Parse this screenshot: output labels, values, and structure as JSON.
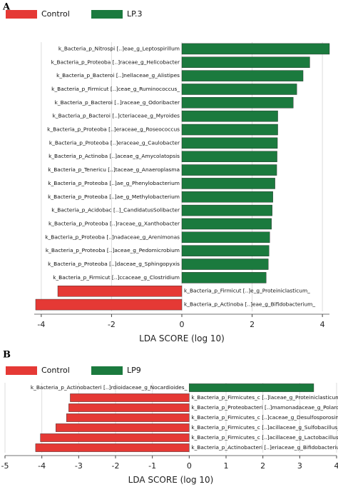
{
  "chart_data": [
    {
      "type": "bar",
      "orientation": "horizontal",
      "panel": "A",
      "x_label": "LDA SCORE (log 10)",
      "categories": [
        "k_Bacteria_p_Nitrospi [..]eae_g_Leptospirillum",
        "k_Bacteria_p_Proteoba [..]raceae_g_Helicobacter",
        "k_Bacteria_p_Bacteroi [..]nellaceae_g_Alistipes",
        "k_Bacteria_p_Firmicut [..]ceae_g_Ruminococcus_",
        "k_Bacteria_p_Bacteroi [..]raceae_g_Odoribacter",
        "k_Bacteria_p_Bacteroi [..]cteriaceae_g_Myroides",
        "k_Bacteria_p_Proteoba [..]eraceae_g_Roseococcus",
        "k_Bacteria_p_Proteoba [..]eraceae_g_Caulobacter",
        "k_Bacteria_p_Actinoba [..]aceae_g_Amycolatopsis",
        "k_Bacteria_p_Tenericu [..]taceae_g_Anaeroplasma",
        "k_Bacteria_p_Proteoba [..]ae_g_Phenylobacterium",
        "k_Bacteria_p_Proteoba [..]ae_g_Methylobacterium",
        "k_Bacteria_p_Acidobac [..]_CandidatusSolibacter",
        "k_Bacteria_p_Proteoba [..]raceae_g_Xanthobacter",
        "k_Bacteria_p_Proteoba [..]nadaceae_g_Arenimonas",
        "k_Bacteria_p_Proteoba [..]aceae_g_Pedomicrobium",
        "k_Bacteria_p_Proteoba [..]daceae_g_Sphingopyxis",
        "k_Bacteria_p_Firmicut [..]ccaceae_g_Clostridium",
        "k_Bacteria_p_Firmicut [..]e_g_Proteiniclasticum_",
        "k_Bacteria_p_Actinoba [..]eae_g_Bifidobacterium_"
      ],
      "series": [
        {
          "name": "Control",
          "color": "#e53935",
          "values": [
            null,
            null,
            null,
            null,
            null,
            null,
            null,
            null,
            null,
            null,
            null,
            null,
            null,
            null,
            null,
            null,
            null,
            null,
            -3.53,
            -4.16
          ]
        },
        {
          "name": "LP.3",
          "color": "#1b7a3e",
          "values": [
            4.2,
            3.64,
            3.45,
            3.27,
            3.17,
            2.73,
            2.73,
            2.72,
            2.71,
            2.7,
            2.65,
            2.59,
            2.57,
            2.55,
            2.5,
            2.48,
            2.46,
            2.4,
            null,
            null
          ]
        }
      ],
      "xlim": [
        -4.2,
        4.2
      ],
      "xticks": [
        -4,
        -2,
        0,
        2,
        4
      ],
      "grid": true
    },
    {
      "type": "bar",
      "orientation": "horizontal",
      "panel": "B",
      "x_label": "LDA SCORE (log 10)",
      "categories": [
        "k_Bacteria_p_Actinobacteri [..]rdioidaceae_g_Nocardioides_",
        "k_Bacteria_p_Firmicutes_c [..]laceae_g_Proteiniclasticum_",
        "k_Bacteria_p_Proteobacteri [..]mamonadaceae_g_Polaromonas_",
        "k_Bacteria_p_Firmicutes_c [..]caceae_g_Desulfosporosinus_",
        "k_Bacteria_p_Firmicutes_c [..]acillaceae_g_Sulfobacillus_",
        "k_Bacteria_p_Firmicutes_c [..]acillaceae_g_Lactobacillus_",
        "k_Bacteria_p_Actinobacteri [..]eriaceae_g_Bifidobacterium_"
      ],
      "series": [
        {
          "name": "Control",
          "color": "#e53935",
          "values": [
            null,
            -3.23,
            -3.27,
            -3.33,
            -3.62,
            -4.04,
            -4.17
          ]
        },
        {
          "name": "LP9",
          "color": "#1b7a3e",
          "values": [
            3.38,
            null,
            null,
            null,
            null,
            null,
            null
          ]
        }
      ],
      "xlim": [
        -5,
        4
      ],
      "xticks": [
        -5,
        -4,
        -3,
        -2,
        -1,
        0,
        1,
        2,
        3,
        4
      ],
      "grid": true
    }
  ]
}
